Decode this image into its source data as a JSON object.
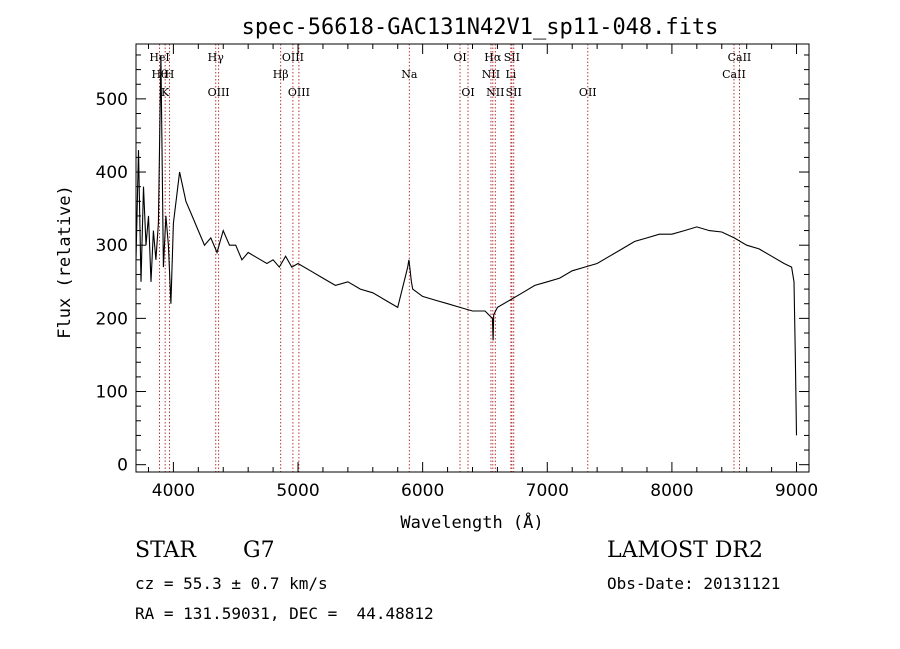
{
  "chart_data": {
    "type": "line",
    "title": "spec-56618-GAC131N42V1_sp11-048.fits",
    "xlabel": "Wavelength (Å)",
    "ylabel": "Flux (relative)",
    "xlim": [
      3700,
      9100
    ],
    "ylim": [
      -10,
      575
    ],
    "xticks": [
      4000,
      5000,
      6000,
      7000,
      8000,
      9000
    ],
    "yticks": [
      0,
      100,
      200,
      300,
      400,
      500
    ],
    "grid": false,
    "series": [
      {
        "color": "#000000",
        "x": [
          3700,
          3720,
          3740,
          3760,
          3780,
          3800,
          3820,
          3840,
          3860,
          3880,
          3900,
          3920,
          3940,
          3960,
          3980,
          4000,
          4050,
          4100,
          4150,
          4200,
          4250,
          4300,
          4350,
          4400,
          4450,
          4500,
          4550,
          4600,
          4650,
          4700,
          4750,
          4800,
          4850,
          4900,
          4950,
          5000,
          5100,
          5200,
          5300,
          5400,
          5500,
          5600,
          5700,
          5800,
          5880,
          5890,
          5900,
          5910,
          5920,
          6000,
          6100,
          6200,
          6300,
          6400,
          6500,
          6560,
          6565,
          6570,
          6600,
          6700,
          6800,
          6900,
          7000,
          7100,
          7200,
          7300,
          7400,
          7500,
          7600,
          7700,
          7800,
          7900,
          8000,
          8100,
          8200,
          8300,
          8400,
          8500,
          8600,
          8700,
          8800,
          8900,
          8960,
          8980,
          8990,
          9000
        ],
        "y": [
          280,
          430,
          250,
          380,
          300,
          340,
          250,
          320,
          280,
          330,
          560,
          270,
          340,
          300,
          220,
          330,
          400,
          360,
          340,
          320,
          300,
          310,
          290,
          320,
          300,
          300,
          280,
          290,
          285,
          280,
          275,
          280,
          270,
          285,
          270,
          275,
          265,
          255,
          245,
          250,
          240,
          235,
          225,
          215,
          270,
          280,
          265,
          250,
          240,
          230,
          225,
          220,
          215,
          210,
          210,
          200,
          170,
          205,
          215,
          225,
          235,
          245,
          250,
          255,
          265,
          270,
          275,
          285,
          295,
          305,
          310,
          315,
          315,
          320,
          325,
          320,
          318,
          310,
          300,
          295,
          285,
          275,
          270,
          250,
          150,
          40
        ]
      }
    ],
    "lines": [
      {
        "x": 3889,
        "top": "HeI",
        "mid": "Hθ",
        "bottom": ""
      },
      {
        "x": 3934,
        "top": "",
        "mid": "",
        "bottom": "K"
      },
      {
        "x": 3969,
        "top": "",
        "mid": "H",
        "bottom": ""
      },
      {
        "x": 4340,
        "top": "Hγ",
        "mid": "",
        "bottom": ""
      },
      {
        "x": 4363,
        "top": "",
        "mid": "",
        "bottom": "OIII"
      },
      {
        "x": 4861,
        "top": "",
        "mid": "Hβ",
        "bottom": ""
      },
      {
        "x": 4959,
        "top": "OIII",
        "mid": "",
        "bottom": ""
      },
      {
        "x": 5007,
        "top": "",
        "mid": "",
        "bottom": "OIII"
      },
      {
        "x": 5893,
        "top": "",
        "mid": "Na",
        "bottom": ""
      },
      {
        "x": 6300,
        "top": "OI",
        "mid": "",
        "bottom": ""
      },
      {
        "x": 6364,
        "top": "",
        "mid": "",
        "bottom": "OI"
      },
      {
        "x": 6548,
        "top": "",
        "mid": "NII",
        "bottom": ""
      },
      {
        "x": 6563,
        "top": "Hα",
        "mid": "",
        "bottom": ""
      },
      {
        "x": 6583,
        "top": "",
        "mid": "",
        "bottom": "NII"
      },
      {
        "x": 6708,
        "top": "",
        "mid": "Li",
        "bottom": ""
      },
      {
        "x": 6716,
        "top": "SII",
        "mid": "",
        "bottom": ""
      },
      {
        "x": 6731,
        "top": "",
        "mid": "",
        "bottom": "SII"
      },
      {
        "x": 7325,
        "top": "",
        "mid": "",
        "bottom": "OII"
      },
      {
        "x": 8498,
        "top": "",
        "mid": "CaII",
        "bottom": ""
      },
      {
        "x": 8542,
        "top": "CaII",
        "mid": "",
        "bottom": ""
      }
    ]
  },
  "info": {
    "object_class": "STAR",
    "subclass": "G7",
    "survey": "LAMOST DR2",
    "redshift": "cz = 55.3 ± 0.7 km/s",
    "obs_date": "Obs-Date: 20131121",
    "coordinates": "RA = 131.59031, DEC =  44.48812"
  }
}
